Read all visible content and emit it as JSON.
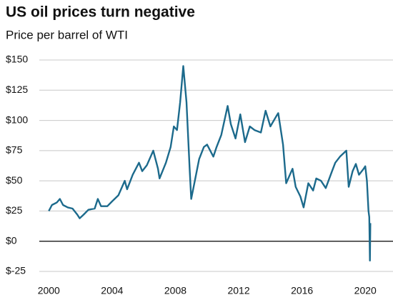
{
  "chart_data": {
    "type": "line",
    "title": "US oil prices turn negative",
    "subtitle": "Price per barrel of WTI",
    "x": [
      2000.0,
      2000.2,
      2000.5,
      2000.7,
      2000.9,
      2001.2,
      2001.5,
      2001.8,
      2001.95,
      2002.2,
      2002.5,
      2002.9,
      2003.1,
      2003.3,
      2003.7,
      2004.0,
      2004.4,
      2004.8,
      2004.95,
      2005.3,
      2005.7,
      2005.9,
      2006.2,
      2006.6,
      2006.9,
      2007.0,
      2007.4,
      2007.7,
      2007.9,
      2008.1,
      2008.3,
      2008.5,
      2008.7,
      2008.9,
      2009.0,
      2009.2,
      2009.5,
      2009.8,
      2010.0,
      2010.4,
      2010.6,
      2010.9,
      2011.3,
      2011.5,
      2011.8,
      2012.1,
      2012.4,
      2012.7,
      2013.0,
      2013.4,
      2013.7,
      2014.0,
      2014.4,
      2014.5,
      2014.8,
      2015.0,
      2015.4,
      2015.6,
      2015.9,
      2016.1,
      2016.4,
      2016.7,
      2016.9,
      2017.2,
      2017.5,
      2017.9,
      2018.1,
      2018.4,
      2018.8,
      2018.95,
      2019.2,
      2019.4,
      2019.6,
      2019.9,
      2020.0,
      2020.1,
      2020.2,
      2020.25,
      2020.29,
      2020.32
    ],
    "series": [
      {
        "name": "WTI",
        "color": "#1c6a8c",
        "values": [
          25,
          30,
          32,
          35,
          30,
          28,
          27,
          22,
          19,
          22,
          26,
          27,
          35,
          29,
          29,
          33,
          38,
          50,
          43,
          55,
          65,
          58,
          63,
          75,
          60,
          52,
          65,
          78,
          95,
          92,
          115,
          145,
          115,
          60,
          35,
          48,
          68,
          78,
          80,
          70,
          78,
          88,
          112,
          97,
          85,
          105,
          82,
          95,
          92,
          90,
          108,
          95,
          104,
          106,
          80,
          48,
          60,
          45,
          37,
          28,
          48,
          42,
          52,
          50,
          44,
          58,
          65,
          70,
          75,
          45,
          58,
          64,
          55,
          60,
          62,
          50,
          25,
          20,
          -16,
          15
        ]
      }
    ],
    "xlim": [
      1999.4,
      2021.75
    ],
    "xticks": [
      2000,
      2004,
      2008,
      2012,
      2016,
      2020
    ],
    "ylim": [
      -25,
      150
    ],
    "yticks": [
      {
        "value": -25,
        "label": "$-25"
      },
      {
        "value": 0,
        "label": "$0"
      },
      {
        "value": 25,
        "label": "$25"
      },
      {
        "value": 50,
        "label": "$50"
      },
      {
        "value": 75,
        "label": "$75"
      },
      {
        "value": 100,
        "label": "$100"
      },
      {
        "value": 125,
        "label": "$125"
      },
      {
        "value": 150,
        "label": "$150"
      }
    ],
    "grid": true
  }
}
